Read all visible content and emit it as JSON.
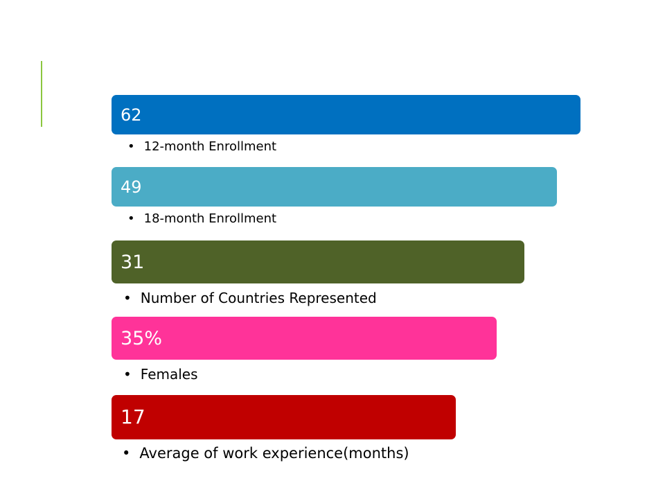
{
  "slide": {
    "accent_color": "#8cc63f",
    "stats": [
      {
        "value": "62",
        "label": "12-month Enrollment",
        "color": "#0070c0"
      },
      {
        "value": "49",
        "label": "18-month Enrollment",
        "color": "#4bacc6"
      },
      {
        "value": "31",
        "label": "Number of Countries Represented",
        "color": "#4f6228"
      },
      {
        "value": "35%",
        "label": "Females",
        "color": "#ff3399"
      },
      {
        "value": "17",
        "label": "Average of work experience(months)",
        "color": "#c00000"
      }
    ],
    "bullet_glyph": "•"
  }
}
